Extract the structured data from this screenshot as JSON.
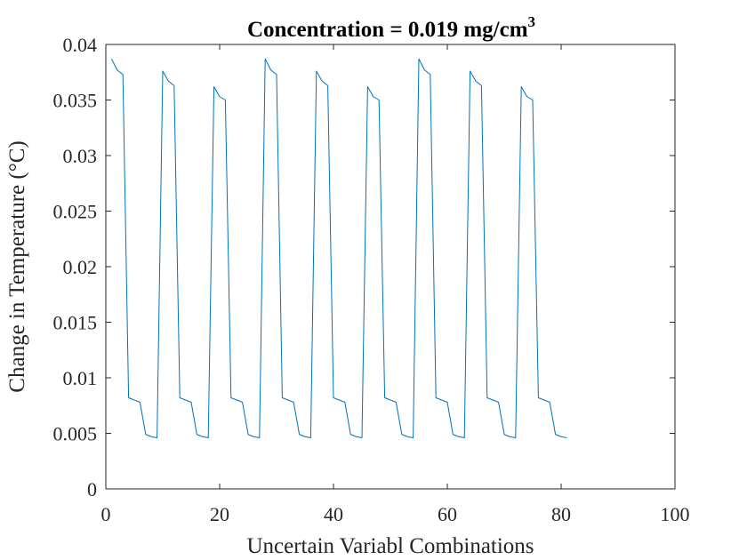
{
  "chart_data": {
    "type": "line",
    "title": "Concentration = 0.019 mg/cm",
    "title_superscript": "3",
    "xlabel": "Uncertain Variabl Combinations",
    "ylabel": "Change in Temperature (°C)",
    "xlim": [
      0,
      100
    ],
    "ylim": [
      0,
      0.04
    ],
    "x_ticks": [
      0,
      20,
      40,
      60,
      80,
      100
    ],
    "x_tick_labels": [
      "0",
      "20",
      "40",
      "60",
      "80",
      "100"
    ],
    "y_ticks": [
      0,
      0.005,
      0.01,
      0.015,
      0.02,
      0.025,
      0.03,
      0.035,
      0.04
    ],
    "y_tick_labels": [
      "0",
      "0.005",
      "0.01",
      "0.015",
      "0.02",
      "0.025",
      "0.03",
      "0.035",
      "0.04"
    ],
    "grid": false,
    "box": true,
    "series": [
      {
        "color": "#0072BD",
        "x": [
          1,
          2,
          3,
          4,
          5,
          6,
          7,
          8,
          9,
          10,
          11,
          12,
          13,
          14,
          15,
          16,
          17,
          18,
          19,
          20,
          21,
          22,
          23,
          24,
          25,
          26,
          27,
          28,
          29,
          30,
          31,
          32,
          33,
          34,
          35,
          36,
          37,
          38,
          39,
          40,
          41,
          42,
          43,
          44,
          45,
          46,
          47,
          48,
          49,
          50,
          51,
          52,
          53,
          54,
          55,
          56,
          57,
          58,
          59,
          60,
          61,
          62,
          63,
          64,
          65,
          66,
          67,
          68,
          69,
          70,
          71,
          72,
          73,
          74,
          75,
          76,
          77,
          78,
          79,
          80,
          81
        ],
        "values": [
          0.0387,
          0.0377,
          0.0373,
          0.0082,
          0.008,
          0.0078,
          0.0049,
          0.0047,
          0.0046,
          0.0376,
          0.0367,
          0.0363,
          0.0082,
          0.008,
          0.0078,
          0.0049,
          0.0047,
          0.0046,
          0.0362,
          0.0353,
          0.035,
          0.0082,
          0.008,
          0.0078,
          0.0049,
          0.0047,
          0.0046,
          0.0387,
          0.0377,
          0.0373,
          0.0082,
          0.008,
          0.0078,
          0.0049,
          0.0047,
          0.0046,
          0.0376,
          0.0367,
          0.0363,
          0.0082,
          0.008,
          0.0078,
          0.0049,
          0.0047,
          0.0046,
          0.0362,
          0.0353,
          0.035,
          0.0082,
          0.008,
          0.0078,
          0.0049,
          0.0047,
          0.0046,
          0.0387,
          0.0377,
          0.0373,
          0.0082,
          0.008,
          0.0078,
          0.0049,
          0.0047,
          0.0046,
          0.0376,
          0.0367,
          0.0363,
          0.0082,
          0.008,
          0.0078,
          0.0049,
          0.0047,
          0.0046,
          0.0362,
          0.0353,
          0.035,
          0.0082,
          0.008,
          0.0078,
          0.0049,
          0.0047,
          0.0046
        ]
      }
    ]
  }
}
